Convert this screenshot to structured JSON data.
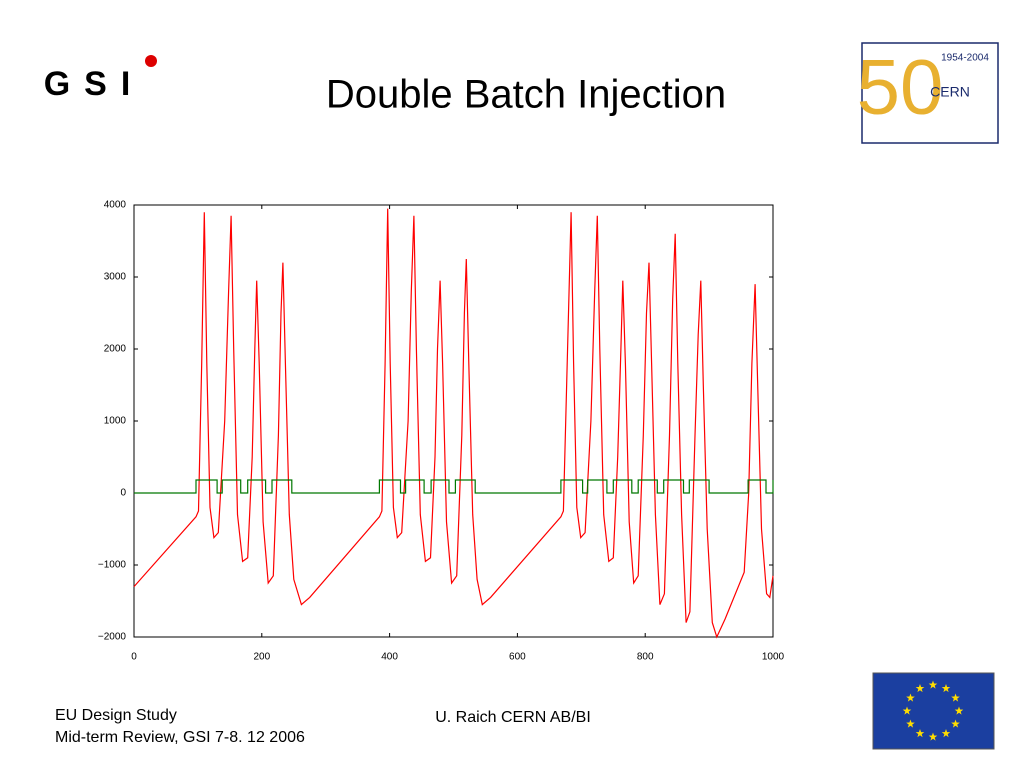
{
  "header": {
    "title": "Double Batch Injection",
    "gsi_logo": "GSI",
    "cern_years": "1954-2004",
    "cern_text": "CERN",
    "cern_anniversary": "50"
  },
  "footer": {
    "left_line1": "EU Design Study",
    "left_line2": "Mid-term Review, GSI 7-8. 12 2006",
    "center": "U. Raich CERN AB/BI"
  },
  "chart_data": {
    "type": "line",
    "xlim": [
      0,
      1000
    ],
    "xticks": [
      0,
      200,
      400,
      600,
      800,
      1000
    ],
    "ylim": [
      -2000,
      4000
    ],
    "yticks": [
      {
        "value": -2000,
        "label": "−2000"
      },
      {
        "value": -1000,
        "label": "−1000"
      },
      0,
      1000,
      2000,
      3000,
      4000
    ],
    "series": [
      {
        "color": "#ff0000",
        "x": [
          0,
          97,
          101,
          106,
          110,
          114,
          119,
          125,
          132,
          142,
          148,
          152,
          156,
          162,
          170,
          178,
          185,
          189,
          192,
          196,
          202,
          210,
          218,
          226,
          230,
          233,
          237,
          243,
          250,
          262,
          275,
          384,
          388,
          393,
          397,
          401,
          406,
          412,
          419,
          429,
          434,
          438,
          442,
          448,
          456,
          464,
          471,
          475,
          479,
          483,
          489,
          497,
          505,
          513,
          517,
          520,
          524,
          530,
          537,
          545,
          558,
          668,
          672,
          678,
          684,
          688,
          693,
          699,
          706,
          715,
          721,
          725,
          729,
          735,
          743,
          750,
          757,
          762,
          765,
          769,
          775,
          782,
          789,
          797,
          802,
          806,
          810,
          816,
          823,
          830,
          838,
          843,
          847,
          851,
          857,
          864,
          870,
          878,
          883,
          887,
          891,
          897,
          905,
          912,
          925,
          955,
          962,
          967,
          972,
          976,
          982,
          990,
          995,
          1000
        ],
        "values": [
          -1300,
          -330,
          -250,
          1800,
          3900,
          1800,
          -200,
          -620,
          -550,
          1000,
          2800,
          3850,
          2000,
          -300,
          -950,
          -900,
          500,
          2000,
          2950,
          1800,
          -400,
          -1250,
          -1150,
          800,
          2500,
          3200,
          1800,
          -300,
          -1200,
          -1550,
          -1450,
          -330,
          -250,
          1800,
          3950,
          1800,
          -200,
          -620,
          -550,
          1000,
          2800,
          3850,
          2000,
          -300,
          -950,
          -900,
          500,
          2000,
          2950,
          1800,
          -400,
          -1250,
          -1150,
          800,
          2500,
          3250,
          1800,
          -300,
          -1200,
          -1550,
          -1450,
          -330,
          -250,
          1800,
          3900,
          1800,
          -200,
          -620,
          -550,
          1000,
          2800,
          3850,
          2000,
          -300,
          -950,
          -900,
          500,
          2000,
          2950,
          1800,
          -400,
          -1250,
          -1150,
          800,
          2500,
          3200,
          1800,
          -300,
          -1550,
          -1400,
          800,
          2700,
          3600,
          1800,
          -300,
          -1800,
          -1650,
          800,
          2200,
          2950,
          1500,
          -500,
          -1800,
          -2000,
          -1750,
          -1100,
          0,
          1800,
          2900,
          1500,
          -500,
          -1400,
          -1450,
          -1150
        ]
      },
      {
        "color": "#007700",
        "x": [
          0,
          97,
          97,
          130,
          130,
          138,
          138,
          167,
          167,
          178,
          178,
          206,
          206,
          216,
          216,
          247,
          247,
          384,
          384,
          417,
          417,
          425,
          425,
          454,
          454,
          465,
          465,
          493,
          493,
          503,
          503,
          534,
          534,
          668,
          668,
          702,
          702,
          710,
          710,
          740,
          740,
          750,
          750,
          779,
          779,
          789,
          789,
          819,
          819,
          829,
          829,
          860,
          860,
          869,
          869,
          900,
          900,
          961,
          961,
          989,
          989,
          1000,
          1000
        ],
        "values": [
          0,
          0,
          180,
          180,
          0,
          0,
          180,
          180,
          0,
          0,
          180,
          180,
          0,
          0,
          180,
          180,
          0,
          0,
          180,
          180,
          0,
          0,
          180,
          180,
          0,
          0,
          180,
          180,
          0,
          0,
          180,
          180,
          0,
          0,
          180,
          180,
          0,
          0,
          180,
          180,
          0,
          0,
          180,
          180,
          0,
          0,
          180,
          180,
          0,
          0,
          180,
          180,
          0,
          0,
          180,
          180,
          0,
          0,
          180,
          180,
          0,
          0,
          180
        ]
      }
    ]
  }
}
